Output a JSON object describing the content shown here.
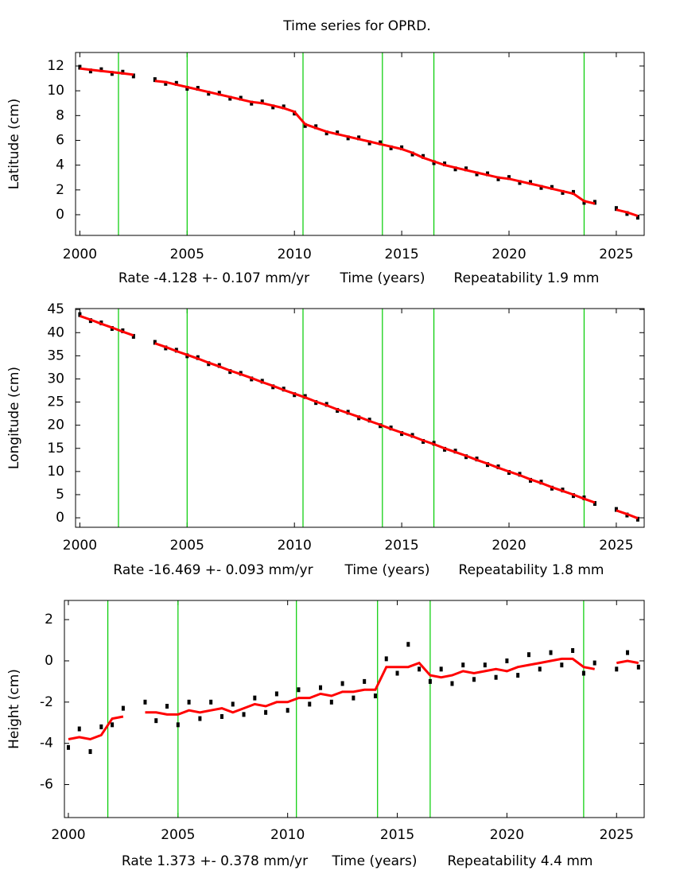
{
  "chart_data": [
    {
      "type": "line",
      "title": "Time series for OPRD.",
      "ylabel": "Latitude (cm)",
      "rate_label": "Rate -4.128 +- 0.107 mm/yr",
      "xlabel": "Time (years)",
      "repeatability_label": "Repeatability 1.9 mm",
      "xlim": [
        1999.8,
        2026.3
      ],
      "xticks": [
        2000,
        2005,
        2010,
        2015,
        2020,
        2025
      ],
      "ylim": [
        -1.67,
        13.09
      ],
      "yticks": [
        0,
        2,
        4,
        6,
        8,
        10,
        12
      ],
      "vlines": [
        2001.8,
        2005.0,
        2010.4,
        2014.1,
        2016.5,
        2023.5
      ],
      "vline_color": "#00cc00",
      "x": [
        2000,
        2000.5,
        2001,
        2001.5,
        2002,
        2002.5,
        2003,
        2003.5,
        2004,
        2004.5,
        2005,
        2005.5,
        2006,
        2006.5,
        2007,
        2007.5,
        2008,
        2008.5,
        2009,
        2009.5,
        2010,
        2010.5,
        2011,
        2011.5,
        2012,
        2012.5,
        2013,
        2013.5,
        2014,
        2014.5,
        2015,
        2015.5,
        2016,
        2016.5,
        2017,
        2017.5,
        2018,
        2018.5,
        2019,
        2019.5,
        2020,
        2020.5,
        2021,
        2021.5,
        2022,
        2022.5,
        2023,
        2023.5,
        2024,
        2024.5,
        2025,
        2025.5,
        2026
      ],
      "series": [
        {
          "color": "#000000",
          "values": [
            11.9,
            11.6,
            11.7,
            11.4,
            11.5,
            11.2,
            null,
            10.9,
            10.6,
            10.6,
            10.2,
            10.2,
            9.8,
            9.8,
            9.4,
            9.4,
            9.0,
            9.1,
            8.7,
            8.7,
            8.2,
            7.2,
            7.1,
            6.6,
            6.6,
            6.2,
            6.2,
            5.8,
            5.8,
            5.4,
            5.4,
            4.9,
            4.7,
            4.2,
            4.1,
            3.7,
            3.7,
            3.3,
            3.3,
            2.9,
            3.0,
            2.6,
            2.6,
            2.2,
            2.2,
            1.8,
            1.8,
            1.0,
            1.0,
            null,
            0.5,
            0.1,
            -0.2
          ]
        },
        {
          "color": "#ff0000",
          "values": [
            11.8,
            11.7,
            11.6,
            11.5,
            11.4,
            11.3,
            null,
            10.8,
            10.7,
            10.5,
            10.3,
            10.1,
            9.9,
            9.7,
            9.5,
            9.3,
            9.1,
            9.0,
            8.8,
            8.6,
            8.3,
            7.3,
            7.0,
            6.7,
            6.5,
            6.3,
            6.1,
            5.9,
            5.7,
            5.5,
            5.3,
            5.0,
            4.6,
            4.3,
            4.0,
            3.8,
            3.6,
            3.4,
            3.2,
            3.0,
            2.9,
            2.7,
            2.5,
            2.3,
            2.1,
            1.9,
            1.7,
            1.1,
            0.9,
            null,
            0.4,
            0.2,
            -0.1
          ]
        }
      ]
    },
    {
      "type": "line",
      "ylabel": "Longitude (cm)",
      "rate_label": "Rate -16.469 +- 0.093 mm/yr",
      "xlabel": "Time (years)",
      "repeatability_label": "Repeatability 1.8 mm",
      "xlim": [
        1999.8,
        2026.3
      ],
      "xticks": [
        2000,
        2005,
        2010,
        2015,
        2020,
        2025
      ],
      "ylim": [
        -2.05,
        45.2
      ],
      "yticks": [
        0,
        5,
        10,
        15,
        20,
        25,
        30,
        35,
        40,
        45
      ],
      "vlines": [
        2001.8,
        2005.0,
        2010.4,
        2014.1,
        2016.5,
        2023.5
      ],
      "vline_color": "#00cc00",
      "x": [
        2000,
        2000.5,
        2001,
        2001.5,
        2002,
        2002.5,
        2003,
        2003.5,
        2004,
        2004.5,
        2005,
        2005.5,
        2006,
        2006.5,
        2007,
        2007.5,
        2008,
        2008.5,
        2009,
        2009.5,
        2010,
        2010.5,
        2011,
        2011.5,
        2012,
        2012.5,
        2013,
        2013.5,
        2014,
        2014.5,
        2015,
        2015.5,
        2016,
        2016.5,
        2017,
        2017.5,
        2018,
        2018.5,
        2019,
        2019.5,
        2020,
        2020.5,
        2021,
        2021.5,
        2022,
        2022.5,
        2023,
        2023.5,
        2024,
        2024.5,
        2025,
        2025.5,
        2026
      ],
      "series": [
        {
          "color": "#000000",
          "values": [
            43.9,
            42.6,
            42.1,
            40.9,
            40.4,
            39.2,
            null,
            37.9,
            36.7,
            36.2,
            35.0,
            34.6,
            33.3,
            32.9,
            31.6,
            31.2,
            30.0,
            29.5,
            28.3,
            27.8,
            26.6,
            26.2,
            24.9,
            24.5,
            23.2,
            22.8,
            21.6,
            21.1,
            19.9,
            19.4,
            18.2,
            17.8,
            16.5,
            16.1,
            14.8,
            14.4,
            13.2,
            12.7,
            11.5,
            11.0,
            9.8,
            9.4,
            8.1,
            7.7,
            6.4,
            6.0,
            4.8,
            4.3,
            3.1,
            null,
            1.8,
            0.6,
            -0.3
          ]
        },
        {
          "color": "#ff0000",
          "values": [
            43.6,
            42.8,
            41.9,
            41.1,
            40.2,
            39.4,
            null,
            37.7,
            36.9,
            36.0,
            35.2,
            34.4,
            33.5,
            32.7,
            31.8,
            31.0,
            30.2,
            29.3,
            28.5,
            27.6,
            26.8,
            26.0,
            25.1,
            24.3,
            23.4,
            22.6,
            21.8,
            20.9,
            20.1,
            19.2,
            18.4,
            17.6,
            16.7,
            15.9,
            15.0,
            14.2,
            13.4,
            12.5,
            11.7,
            10.8,
            10.0,
            9.2,
            8.3,
            7.5,
            6.6,
            5.8,
            5.0,
            4.1,
            3.3,
            null,
            1.6,
            0.8,
            -0.1
          ]
        }
      ]
    },
    {
      "type": "line",
      "ylabel": "Height (cm)",
      "rate_label": "Rate 1.373 +- 0.378 mm/yr",
      "xlabel": "Time (years)",
      "repeatability_label": "Repeatability 4.4 mm",
      "xlim": [
        1999.82,
        2026.26
      ],
      "xticks": [
        2000,
        2005,
        2010,
        2015,
        2020,
        2025
      ],
      "ylim": [
        -7.6,
        2.93
      ],
      "yticks": [
        -6,
        -4,
        -2,
        0,
        2
      ],
      "vlines": [
        2001.8,
        2005.0,
        2010.4,
        2014.1,
        2016.5,
        2023.5
      ],
      "vline_color": "#00cc00",
      "x": [
        2000,
        2000.5,
        2001,
        2001.5,
        2002,
        2002.5,
        2003,
        2003.5,
        2004,
        2004.5,
        2005,
        2005.5,
        2006,
        2006.5,
        2007,
        2007.5,
        2008,
        2008.5,
        2009,
        2009.5,
        2010,
        2010.5,
        2011,
        2011.5,
        2012,
        2012.5,
        2013,
        2013.5,
        2014,
        2014.5,
        2015,
        2015.5,
        2016,
        2016.5,
        2017,
        2017.5,
        2018,
        2018.5,
        2019,
        2019.5,
        2020,
        2020.5,
        2021,
        2021.5,
        2022,
        2022.5,
        2023,
        2023.5,
        2024,
        2024.5,
        2025,
        2025.5,
        2026
      ],
      "series": [
        {
          "color": "#000000",
          "values": [
            -4.2,
            -3.3,
            -4.4,
            -3.2,
            -3.1,
            -2.3,
            null,
            -2.0,
            -2.9,
            -2.2,
            -3.1,
            -2.0,
            -2.8,
            -2.0,
            -2.7,
            -2.1,
            -2.6,
            -1.8,
            -2.5,
            -1.6,
            -2.4,
            -1.4,
            -2.1,
            -1.3,
            -2.0,
            -1.1,
            -1.8,
            -1.0,
            -1.7,
            0.1,
            -0.6,
            0.8,
            -0.4,
            -1.0,
            -0.4,
            -1.1,
            -0.2,
            -0.9,
            -0.2,
            -0.8,
            0.0,
            -0.7,
            0.3,
            -0.4,
            0.4,
            -0.2,
            0.5,
            -0.6,
            -0.1,
            null,
            -0.4,
            0.4,
            -0.3
          ]
        },
        {
          "color": "#ff0000",
          "values": [
            -3.8,
            -3.7,
            -3.8,
            -3.6,
            -2.8,
            -2.7,
            null,
            -2.5,
            -2.5,
            -2.6,
            -2.6,
            -2.4,
            -2.5,
            -2.4,
            -2.3,
            -2.5,
            -2.3,
            -2.1,
            -2.2,
            -2.0,
            -2.0,
            -1.8,
            -1.8,
            -1.6,
            -1.7,
            -1.5,
            -1.5,
            -1.4,
            -1.4,
            -0.3,
            -0.3,
            -0.3,
            -0.1,
            -0.7,
            -0.8,
            -0.7,
            -0.5,
            -0.6,
            -0.5,
            -0.4,
            -0.5,
            -0.3,
            -0.2,
            -0.1,
            0.0,
            0.1,
            0.1,
            -0.3,
            -0.4,
            null,
            -0.1,
            0.0,
            -0.1
          ]
        }
      ]
    }
  ]
}
